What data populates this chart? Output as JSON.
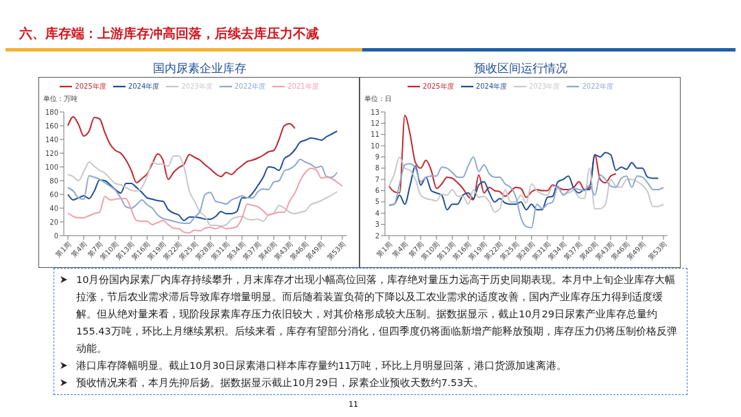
{
  "chart_data": [
    {
      "type": "other",
      "title": "六、库存端：上游库存冲高回落，后续去库压力不减"
    },
    {
      "type": "line",
      "title": "国内尿素企业库存",
      "ylabel": "单位：万吨",
      "legend": "top",
      "categories": [
        "第1周",
        null,
        null,
        "第4周",
        null,
        null,
        "第7周",
        null,
        null,
        "第10周",
        null,
        null,
        "第13周",
        null,
        null,
        "第16周",
        null,
        null,
        "第19周",
        null,
        null,
        "第22周",
        null,
        null,
        "第25周",
        null,
        null,
        "第28周",
        null,
        null,
        "第31周",
        null,
        null,
        "第34周",
        null,
        null,
        "第37周",
        null,
        null,
        "第40周",
        null,
        null,
        "第43周",
        null,
        null,
        "第46周",
        null,
        null,
        "第49周",
        null,
        null,
        null,
        "第53周"
      ],
      "ylim": [
        0,
        180
      ],
      "yticks": [
        0,
        20,
        40,
        60,
        80,
        100,
        120,
        140,
        160,
        180
      ],
      "series": [
        {
          "name": "2025年度",
          "color": "#c0282f",
          "values": [
            160,
            173,
            162,
            145,
            152,
            172,
            170,
            150,
            133,
            124,
            120,
            110,
            95,
            77,
            83,
            90,
            105,
            119,
            110,
            82,
            92,
            99,
            104,
            118,
            114,
            110,
            103,
            97,
            90,
            86,
            92,
            89,
            96,
            102,
            108,
            110,
            113,
            117,
            122,
            124,
            140,
            160,
            163,
            156,
            null,
            null,
            null,
            null,
            null,
            null,
            null,
            null,
            null
          ]
        },
        {
          "name": "2024年度",
          "color": "#1f4e96",
          "values": [
            60,
            52,
            55,
            58,
            54,
            65,
            81,
            80,
            74,
            67,
            62,
            76,
            76,
            70,
            63,
            55,
            53,
            51,
            50,
            38,
            33,
            30,
            22,
            27,
            27,
            26,
            24,
            24,
            28,
            35,
            32,
            32,
            35,
            55,
            55,
            62,
            73,
            85,
            100,
            99,
            95,
            112,
            117,
            125,
            136,
            139,
            142,
            141,
            139,
            144,
            148,
            152,
            null
          ]
        },
        {
          "name": "2023年度",
          "color": "#c8c8c8",
          "values": [
            89,
            86,
            80,
            93,
            107,
            101,
            95,
            91,
            83,
            76,
            74,
            70,
            66,
            65,
            70,
            86,
            107,
            104,
            104,
            101,
            116,
            116,
            100,
            65,
            50,
            35,
            28,
            15,
            15,
            14,
            16,
            24,
            27,
            28,
            24,
            23,
            24,
            21,
            30,
            33,
            44,
            40,
            34,
            32,
            34,
            36,
            45,
            48,
            51,
            55,
            59,
            64,
            null
          ]
        },
        {
          "name": "2022年度",
          "color": "#8fa8d0",
          "values": [
            70,
            65,
            55,
            53,
            87,
            85,
            82,
            77,
            72,
            66,
            55,
            42,
            40,
            45,
            52,
            45,
            40,
            30,
            25,
            23,
            21,
            19,
            18,
            18,
            27,
            35,
            60,
            63,
            50,
            48,
            46,
            52,
            55,
            58,
            55,
            55,
            64,
            68,
            67,
            78,
            80,
            94,
            97,
            102,
            111,
            107,
            104,
            99,
            101,
            86,
            85,
            92,
            null
          ]
        },
        {
          "name": "2021年度",
          "color": "#f0a0aa",
          "values": [
            33,
            28,
            26,
            26,
            29,
            32,
            34,
            57,
            52,
            53,
            54,
            54,
            38,
            22,
            21,
            21,
            16,
            19,
            22,
            16,
            11,
            10,
            5,
            4,
            8,
            7,
            11,
            12,
            10,
            13,
            10,
            11,
            13,
            26,
            46,
            44,
            42,
            36,
            30,
            32,
            34,
            34,
            50,
            62,
            80,
            92,
            98,
            96,
            84,
            85,
            83,
            78,
            72
          ]
        }
      ]
    },
    {
      "type": "line",
      "title": "预收区间运行情况",
      "ylabel": "单位：日",
      "legend": "top",
      "categories": [
        "第1周",
        null,
        null,
        "第4周",
        null,
        null,
        "第7周",
        null,
        null,
        "第10周",
        null,
        null,
        "第13周",
        null,
        null,
        "第16周",
        null,
        null,
        "第19周",
        null,
        null,
        "第22周",
        null,
        null,
        "第25周",
        null,
        null,
        "第28周",
        null,
        null,
        "第31周",
        null,
        null,
        "第34周",
        null,
        null,
        "第37周",
        null,
        null,
        "第40周",
        null,
        null,
        "第43周",
        null,
        null,
        "第46周",
        null,
        null,
        "第49周",
        null,
        null,
        null,
        "第53周"
      ],
      "ylim": [
        2,
        13
      ],
      "yticks": [
        2,
        3,
        4,
        5,
        6,
        7,
        8,
        9,
        10,
        11,
        12,
        13
      ],
      "series": [
        {
          "name": "2025年度",
          "color": "#c0282f",
          "values": [
            6.4,
            5.9,
            5.8,
            12.7,
            11.0,
            8.5,
            8.0,
            8.7,
            7.8,
            6.2,
            6.6,
            7.2,
            7.1,
            6.7,
            6.2,
            5.5,
            5.2,
            7.4,
            5.8,
            6.3,
            6.0,
            5.9,
            5.5,
            5.9,
            6.3,
            6.2,
            5.4,
            5.9,
            6.1,
            6.0,
            6.0,
            6.5,
            6.3,
            6.1,
            6.1,
            6.3,
            6.8,
            6.1,
            6.3,
            9.2,
            7.0,
            6.7,
            7.3,
            7.5,
            null,
            null,
            null,
            null,
            null,
            null,
            null,
            null,
            null
          ]
        },
        {
          "name": "2024年度",
          "color": "#1f4e96",
          "values": [
            4.7,
            4.8,
            5.6,
            4.8,
            6.5,
            8.2,
            6.5,
            7.2,
            6.0,
            5.8,
            5.6,
            4.3,
            4.8,
            4.8,
            5.6,
            5.8,
            5.3,
            6.5,
            6.8,
            5.8,
            5.0,
            5.3,
            4.9,
            4.8,
            4.8,
            5.0,
            4.3,
            4.8,
            4.3,
            4.3,
            5.4,
            5.5,
            6.8,
            7.0,
            7.3,
            6.2,
            5.8,
            6.1,
            6.1,
            9.2,
            9.0,
            9.4,
            9.2,
            7.8,
            8.1,
            7.9,
            8.5,
            8.0,
            8.0,
            7.2,
            7.1,
            7.1,
            null
          ]
        },
        {
          "name": "2023年度",
          "color": "#c8c8c8",
          "values": [
            6.4,
            7.5,
            9.0,
            8.0,
            7.8,
            7.0,
            5.6,
            5.3,
            5.2,
            5.1,
            5.7,
            5.6,
            6.1,
            5.5,
            5.5,
            4.8,
            6.1,
            5.4,
            5.5,
            5.0,
            4.1,
            4.4,
            6.1,
            5.0,
            5.0,
            5.6,
            4.9,
            6.6,
            6.0,
            5.7,
            5.6,
            6.4,
            6.2,
            5.7,
            5.8,
            6.0,
            5.4,
            5.3,
            8.0,
            4.4,
            4.4,
            4.8,
            7.0,
            6.4,
            6.3,
            7.0,
            7.0,
            6.8,
            6.5,
            5.9,
            4.6,
            4.6,
            4.8
          ]
        },
        {
          "name": "2022年度",
          "color": "#8fa8d0",
          "values": [
            4.7,
            4.8,
            6.6,
            8.3,
            8.4,
            8.0,
            6.8,
            7.2,
            7.3,
            7.3,
            8.1,
            8.0,
            7.6,
            7.2,
            7.2,
            8.2,
            9.0,
            7.7,
            8.3,
            7.5,
            7.2,
            7.2,
            6.6,
            6.3,
            5.5,
            3.6,
            2.8,
            2.7,
            4.8,
            4.4,
            4.8,
            5.0,
            6.4,
            5.6,
            6.0,
            6.2,
            6.1,
            6.0,
            6.5,
            5.6,
            7.4,
            7.0,
            6.4,
            6.3,
            7.1,
            7.3,
            6.3,
            7.3,
            7.2,
            6.7,
            6.1,
            6.1,
            6.3
          ]
        }
      ]
    },
    {
      "type": "other",
      "annotations": [
        "10月份国内尿素厂内库存持续攀升，月末库存才出现小幅高位回落，库存绝对量压力远高于历史同期表现。本月中上旬企业库存大幅拉涨，节后农业需求滞后导致库存增量明显。而后随着装置负荷的下降以及工农业需求的适度改善，国内产业库存压力得到适度缓解。但从绝对量来看，现阶段尿素库存压力依旧较大，对其价格形成较大压制。据数据显示，截止10月29日尿素产业库存总量约155.43万吨，环比上月继续累积。后续来看，库存有望部分消化，但四季度仍将面临新增产能释放预期，库存压力仍将压制价格反弹动能。",
        "港口库存降幅明显。截止10月30日尿素港口样本库存量约11万吨，环比上月明显回落，港口货源加速离港。",
        "预收情况来看，本月先抑后扬。据数据显示截止10月29日，尿素企业预收天数约7.53天。",
        "11"
      ]
    }
  ]
}
